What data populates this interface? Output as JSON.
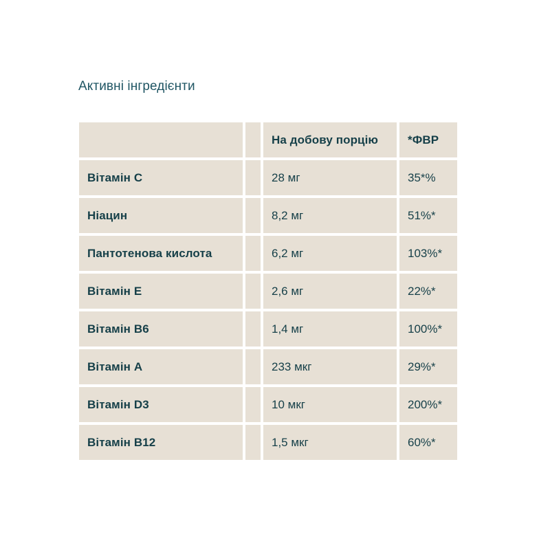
{
  "page": {
    "title": "Активні інгредієнти"
  },
  "table": {
    "header": {
      "name": "",
      "spacer": "",
      "amount": "На добову порцію",
      "fvr": "*ФВР"
    },
    "rows": [
      {
        "name": "Вітамін C",
        "amount": "28 мг",
        "percent": "35*%"
      },
      {
        "name": "Ніацин",
        "amount": "8,2 мг",
        "percent": "51%*"
      },
      {
        "name": "Пантотенова кислота",
        "amount": "6,2 мг",
        "percent": "103%*"
      },
      {
        "name": "Вітамін E",
        "amount": "2,6 мг",
        "percent": "22%*"
      },
      {
        "name": "Вітамін B6",
        "amount": "1,4 мг",
        "percent": "100%*"
      },
      {
        "name": "Вітамін A",
        "amount": "233 мкг",
        "percent": "29%*"
      },
      {
        "name": "Вітамін D3",
        "amount": "10 мкг",
        "percent": "200%*"
      },
      {
        "name": "Вітамін B12",
        "amount": "1,5 мкг",
        "percent": "60%*"
      }
    ],
    "colors": {
      "page_background": "#ffffff",
      "cell_background": "#e7e0d5",
      "table_text": "#153f48",
      "title_text": "#1f5563",
      "cell_gap": "#ffffff"
    }
  }
}
